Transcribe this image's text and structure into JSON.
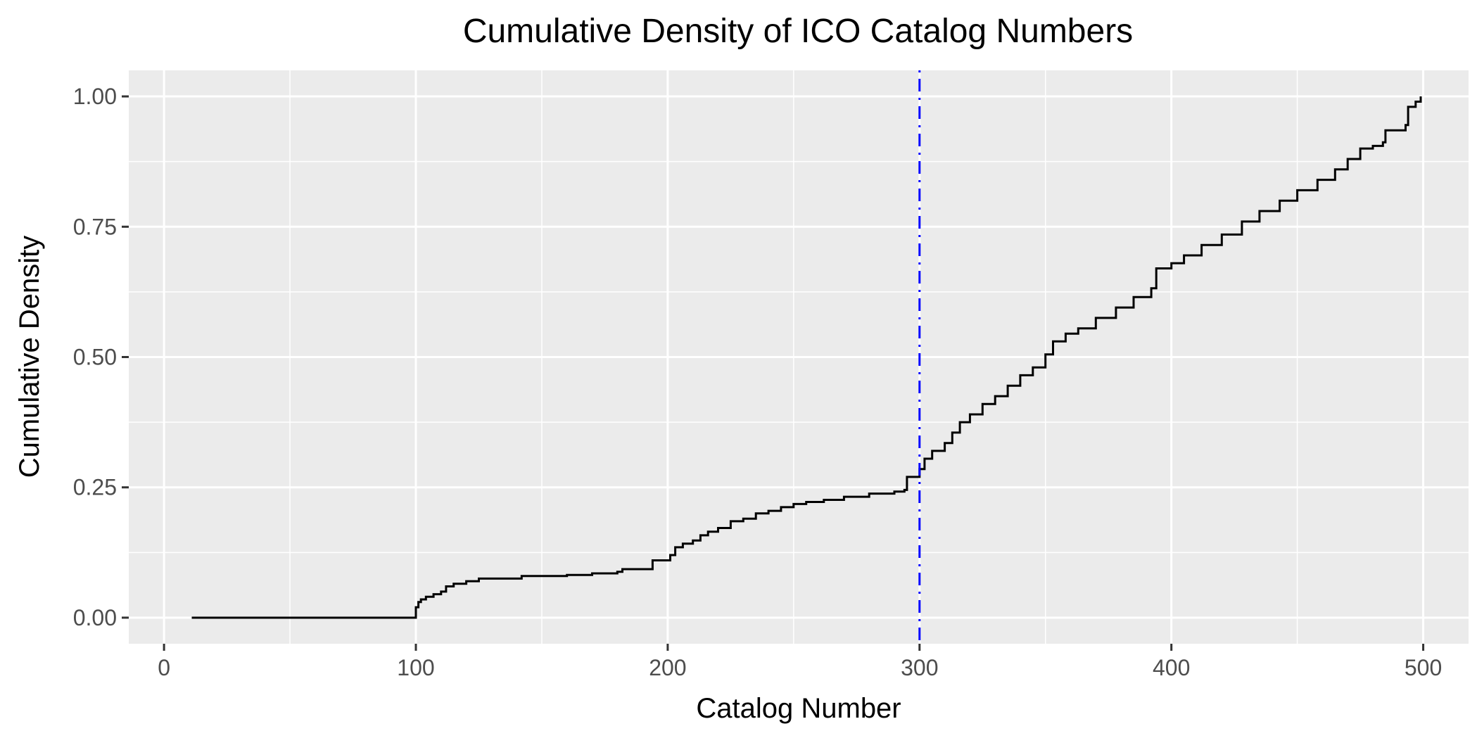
{
  "chart_data": {
    "type": "line",
    "step": true,
    "title": "Cumulative Density of ICO Catalog Numbers",
    "xlabel": "Catalog Number",
    "ylabel": "Cumulative Density",
    "xlim": [
      -14,
      518
    ],
    "ylim": [
      -0.05,
      1.05
    ],
    "x_ticks": [
      0,
      100,
      200,
      300,
      400,
      500
    ],
    "x_tick_labels": [
      "0",
      "100",
      "200",
      "300",
      "400",
      "500"
    ],
    "y_ticks": [
      0,
      0.25,
      0.5,
      0.75,
      1.0
    ],
    "y_tick_labels": [
      "0.00",
      "0.25",
      "0.50",
      "0.75",
      "1.00"
    ],
    "grid": true,
    "background": "#ebebeb",
    "grid_color": "#ffffff",
    "series": [
      {
        "color": "#000000",
        "points": [
          [
            11,
            0.0
          ],
          [
            100,
            0.0
          ],
          [
            100,
            0.02
          ],
          [
            101,
            0.03
          ],
          [
            102,
            0.035
          ],
          [
            104,
            0.04
          ],
          [
            107,
            0.045
          ],
          [
            110,
            0.05
          ],
          [
            112,
            0.06
          ],
          [
            115,
            0.065
          ],
          [
            120,
            0.07
          ],
          [
            125,
            0.075
          ],
          [
            140,
            0.075
          ],
          [
            142,
            0.08
          ],
          [
            160,
            0.082
          ],
          [
            170,
            0.085
          ],
          [
            180,
            0.088
          ],
          [
            182,
            0.093
          ],
          [
            193,
            0.093
          ],
          [
            194,
            0.11
          ],
          [
            200,
            0.11
          ],
          [
            201,
            0.12
          ],
          [
            203,
            0.135
          ],
          [
            206,
            0.142
          ],
          [
            210,
            0.148
          ],
          [
            213,
            0.158
          ],
          [
            216,
            0.165
          ],
          [
            220,
            0.172
          ],
          [
            225,
            0.185
          ],
          [
            230,
            0.19
          ],
          [
            235,
            0.2
          ],
          [
            240,
            0.205
          ],
          [
            245,
            0.212
          ],
          [
            250,
            0.218
          ],
          [
            255,
            0.222
          ],
          [
            262,
            0.226
          ],
          [
            270,
            0.232
          ],
          [
            280,
            0.238
          ],
          [
            290,
            0.242
          ],
          [
            294,
            0.245
          ],
          [
            295,
            0.27
          ],
          [
            300,
            0.27
          ],
          [
            300,
            0.285
          ],
          [
            302,
            0.305
          ],
          [
            305,
            0.32
          ],
          [
            310,
            0.335
          ],
          [
            313,
            0.355
          ],
          [
            316,
            0.375
          ],
          [
            320,
            0.39
          ],
          [
            325,
            0.41
          ],
          [
            330,
            0.425
          ],
          [
            335,
            0.445
          ],
          [
            340,
            0.465
          ],
          [
            345,
            0.48
          ],
          [
            350,
            0.505
          ],
          [
            353,
            0.53
          ],
          [
            358,
            0.545
          ],
          [
            363,
            0.555
          ],
          [
            370,
            0.575
          ],
          [
            378,
            0.595
          ],
          [
            385,
            0.615
          ],
          [
            392,
            0.632
          ],
          [
            394,
            0.632
          ],
          [
            394,
            0.67
          ],
          [
            400,
            0.68
          ],
          [
            405,
            0.695
          ],
          [
            412,
            0.715
          ],
          [
            420,
            0.735
          ],
          [
            428,
            0.76
          ],
          [
            435,
            0.78
          ],
          [
            443,
            0.8
          ],
          [
            450,
            0.82
          ],
          [
            458,
            0.84
          ],
          [
            465,
            0.86
          ],
          [
            470,
            0.88
          ],
          [
            475,
            0.9
          ],
          [
            480,
            0.905
          ],
          [
            484,
            0.912
          ],
          [
            485,
            0.935
          ],
          [
            493,
            0.945
          ],
          [
            494,
            0.98
          ],
          [
            497,
            0.99
          ],
          [
            499,
            1.0
          ]
        ]
      }
    ],
    "reference_line": {
      "x": 300,
      "color": "#0000ff",
      "style": "dotdash"
    }
  }
}
